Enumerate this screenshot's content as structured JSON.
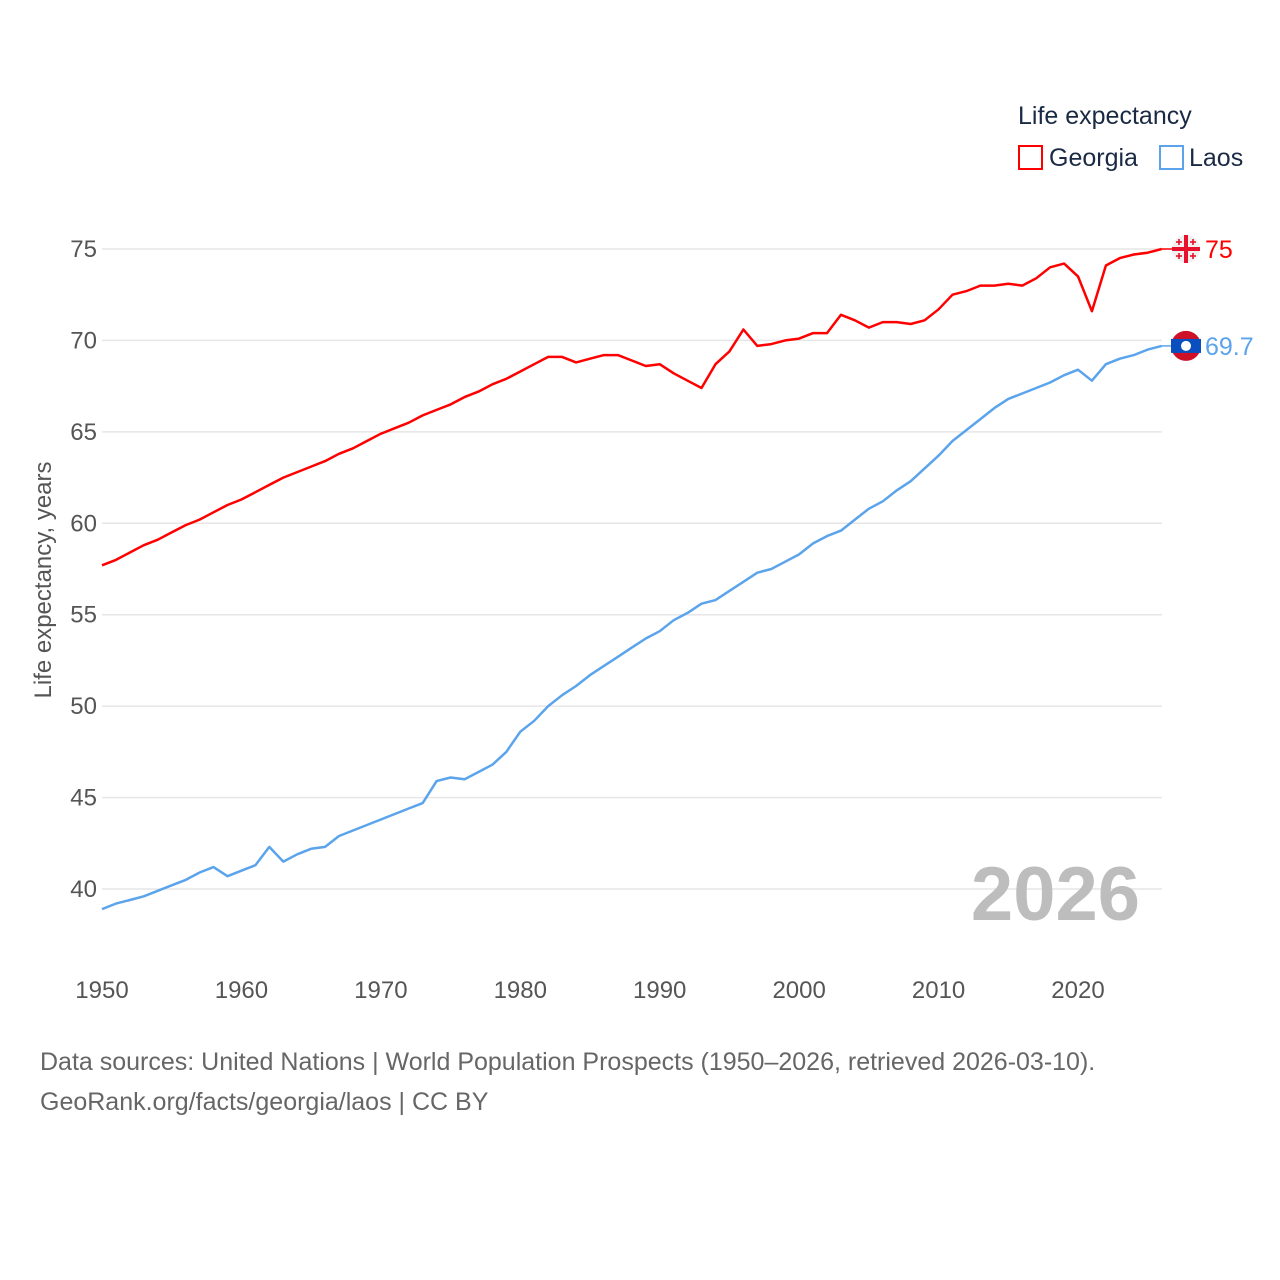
{
  "chart_data": {
    "type": "line",
    "title": "Life expectancy",
    "ylabel": "Life expectancy, years",
    "xlabel": "",
    "xlim": [
      1950,
      2026
    ],
    "ylim": [
      37.5,
      77
    ],
    "yticks": [
      40,
      45,
      50,
      55,
      60,
      65,
      70,
      75
    ],
    "xticks": [
      1950,
      1960,
      1970,
      1980,
      1990,
      2000,
      2010,
      2020
    ],
    "grid": true,
    "legend_position": "top-right",
    "year_watermark": "2026",
    "x": [
      1950,
      1951,
      1952,
      1953,
      1954,
      1955,
      1956,
      1957,
      1958,
      1959,
      1960,
      1961,
      1962,
      1963,
      1964,
      1965,
      1966,
      1967,
      1968,
      1969,
      1970,
      1971,
      1972,
      1973,
      1974,
      1975,
      1976,
      1977,
      1978,
      1979,
      1980,
      1981,
      1982,
      1983,
      1984,
      1985,
      1986,
      1987,
      1988,
      1989,
      1990,
      1991,
      1992,
      1993,
      1994,
      1995,
      1996,
      1997,
      1998,
      1999,
      2000,
      2001,
      2002,
      2003,
      2004,
      2005,
      2006,
      2007,
      2008,
      2009,
      2010,
      2011,
      2012,
      2013,
      2014,
      2015,
      2016,
      2017,
      2018,
      2019,
      2020,
      2021,
      2022,
      2023,
      2024,
      2025,
      2026
    ],
    "series": [
      {
        "name": "Georgia",
        "color": "#ff0000",
        "end_label": "75",
        "values": [
          57.7,
          58.0,
          58.4,
          58.8,
          59.1,
          59.5,
          59.9,
          60.2,
          60.6,
          61.0,
          61.3,
          61.7,
          62.1,
          62.5,
          62.8,
          63.1,
          63.4,
          63.8,
          64.1,
          64.5,
          64.9,
          65.2,
          65.5,
          65.9,
          66.2,
          66.5,
          66.9,
          67.2,
          67.6,
          67.9,
          68.3,
          68.7,
          69.1,
          69.1,
          68.8,
          69.0,
          69.2,
          69.2,
          68.9,
          68.6,
          68.7,
          68.2,
          67.8,
          67.4,
          68.7,
          69.4,
          70.6,
          69.7,
          69.8,
          70.0,
          70.1,
          70.4,
          70.4,
          71.4,
          71.1,
          70.7,
          71.0,
          71.0,
          70.9,
          71.1,
          71.7,
          72.5,
          72.7,
          73.0,
          73.0,
          73.1,
          73.0,
          73.4,
          74.0,
          74.2,
          73.5,
          71.6,
          74.1,
          74.5,
          74.7,
          74.8,
          75.0
        ]
      },
      {
        "name": "Laos",
        "color": "#5ba4ec",
        "end_label": "69.7",
        "values": [
          38.9,
          39.2,
          39.4,
          39.6,
          39.9,
          40.2,
          40.5,
          40.9,
          41.2,
          40.7,
          41.0,
          41.3,
          42.3,
          41.5,
          41.9,
          42.2,
          42.3,
          42.9,
          43.2,
          43.5,
          43.8,
          44.1,
          44.4,
          44.7,
          45.9,
          46.1,
          46.0,
          46.4,
          46.8,
          47.5,
          48.6,
          49.2,
          50.0,
          50.6,
          51.1,
          51.7,
          52.2,
          52.7,
          53.2,
          53.7,
          54.1,
          54.7,
          55.1,
          55.6,
          55.8,
          56.3,
          56.8,
          57.3,
          57.5,
          57.9,
          58.3,
          58.9,
          59.3,
          59.6,
          60.2,
          60.8,
          61.2,
          61.8,
          62.3,
          63.0,
          63.7,
          64.5,
          65.1,
          65.7,
          66.3,
          66.8,
          67.1,
          67.4,
          67.7,
          68.1,
          68.4,
          67.8,
          68.7,
          69.0,
          69.2,
          69.5,
          69.7
        ]
      }
    ]
  },
  "footer": {
    "line1": "Data sources: United Nations | World Population Prospects (1950–2026, retrieved 2026-03-10).",
    "line2": "GeoRank.org/facts/georgia/laos | CC BY"
  }
}
